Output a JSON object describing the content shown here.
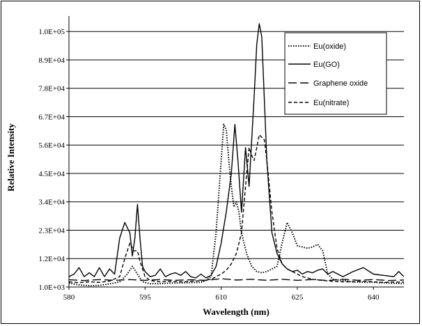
{
  "chart_data": {
    "type": "line",
    "title": "",
    "xlabel": "Wavelength (nm)",
    "ylabel": "Relative Intensity",
    "xlim": [
      580,
      646
    ],
    "ylim": [
      1000,
      106000
    ],
    "x_ticks": [
      580,
      595,
      610,
      625,
      640
    ],
    "x_tick_labels": [
      "580",
      "595",
      "610",
      "625",
      "640"
    ],
    "y_ticks": [
      1000,
      12000,
      23000,
      34000,
      45000,
      56000,
      67000,
      78000,
      89000,
      100000
    ],
    "y_tick_labels": [
      "1.0E+03",
      "1.2E+04",
      "2.3E+04",
      "3.4E+04",
      "4.5E+04",
      "5.6E+04",
      "6.7E+04",
      "7.8E+04",
      "8.9E+04",
      "1.0E+05"
    ],
    "grid": "horizontal",
    "legend_position": "top-right",
    "series": [
      {
        "name": "Eu(oxide)",
        "style": "dotted",
        "points": [
          [
            580,
            2500
          ],
          [
            582,
            1800
          ],
          [
            584,
            1500
          ],
          [
            586,
            1600
          ],
          [
            588,
            2200
          ],
          [
            590,
            3000
          ],
          [
            591.5,
            6000
          ],
          [
            592.5,
            9000
          ],
          [
            593.5,
            6000
          ],
          [
            594.5,
            3000
          ],
          [
            596,
            2300
          ],
          [
            598,
            2300
          ],
          [
            600,
            2500
          ],
          [
            602,
            2600
          ],
          [
            604,
            2700
          ],
          [
            606,
            2800
          ],
          [
            607,
            3500
          ],
          [
            608,
            5000
          ],
          [
            609,
            22000
          ],
          [
            610,
            50000
          ],
          [
            610.5,
            64000
          ],
          [
            611,
            62000
          ],
          [
            611.5,
            50000
          ],
          [
            612,
            40000
          ],
          [
            612.5,
            32000
          ],
          [
            613,
            34000
          ],
          [
            613.5,
            30000
          ],
          [
            614,
            22000
          ],
          [
            615,
            14000
          ],
          [
            616,
            9000
          ],
          [
            617,
            7000
          ],
          [
            618,
            6500
          ],
          [
            619,
            7000
          ],
          [
            620,
            8000
          ],
          [
            621,
            9000
          ],
          [
            622,
            18000
          ],
          [
            623,
            26000
          ],
          [
            624,
            22000
          ],
          [
            625,
            17000
          ],
          [
            626,
            16500
          ],
          [
            627,
            16000
          ],
          [
            628,
            16500
          ],
          [
            629,
            17500
          ],
          [
            630,
            15000
          ],
          [
            631,
            6000
          ],
          [
            632,
            4000
          ],
          [
            634,
            3500
          ],
          [
            636,
            3000
          ],
          [
            638,
            2800
          ],
          [
            640,
            2800
          ],
          [
            642,
            2600
          ],
          [
            644,
            2400
          ],
          [
            646,
            2300
          ]
        ]
      },
      {
        "name": "Eu(GO)",
        "style": "solid",
        "points": [
          [
            580,
            5000
          ],
          [
            581,
            6000
          ],
          [
            582,
            8500
          ],
          [
            583,
            5000
          ],
          [
            584,
            6500
          ],
          [
            585,
            5000
          ],
          [
            586,
            8500
          ],
          [
            587,
            5000
          ],
          [
            588,
            8000
          ],
          [
            589,
            6000
          ],
          [
            590,
            20000
          ],
          [
            591,
            26000
          ],
          [
            592,
            22000
          ],
          [
            592.5,
            13000
          ],
          [
            593,
            20000
          ],
          [
            593.5,
            33000
          ],
          [
            594,
            20000
          ],
          [
            594.5,
            9000
          ],
          [
            595,
            7000
          ],
          [
            596,
            5000
          ],
          [
            597,
            5500
          ],
          [
            598,
            8000
          ],
          [
            599,
            5000
          ],
          [
            600,
            6000
          ],
          [
            601,
            6500
          ],
          [
            602,
            5500
          ],
          [
            603,
            7000
          ],
          [
            604,
            5000
          ],
          [
            605,
            4500
          ],
          [
            606,
            6000
          ],
          [
            607,
            4500
          ],
          [
            608,
            5500
          ],
          [
            609,
            9000
          ],
          [
            610,
            18000
          ],
          [
            611,
            30000
          ],
          [
            612,
            45000
          ],
          [
            612.7,
            64000
          ],
          [
            613.3,
            50000
          ],
          [
            614,
            30000
          ],
          [
            614.8,
            55000
          ],
          [
            615.5,
            40000
          ],
          [
            616.5,
            75000
          ],
          [
            617,
            95000
          ],
          [
            617.5,
            103000
          ],
          [
            618,
            98000
          ],
          [
            619,
            50000
          ],
          [
            620,
            22000
          ],
          [
            621,
            14000
          ],
          [
            622,
            10000
          ],
          [
            623,
            8000
          ],
          [
            624,
            7000
          ],
          [
            625,
            7500
          ],
          [
            626,
            6000
          ],
          [
            627,
            7000
          ],
          [
            628,
            6500
          ],
          [
            629,
            7500
          ],
          [
            630,
            8000
          ],
          [
            631,
            6000
          ],
          [
            632,
            7000
          ],
          [
            634,
            5000
          ],
          [
            636,
            7000
          ],
          [
            638,
            8500
          ],
          [
            640,
            6000
          ],
          [
            642,
            5500
          ],
          [
            644,
            5000
          ],
          [
            645,
            7000
          ],
          [
            646,
            5000
          ]
        ]
      },
      {
        "name": "Graphene oxide",
        "style": "dashed-long",
        "points": [
          [
            580,
            3800
          ],
          [
            583,
            3500
          ],
          [
            586,
            3900
          ],
          [
            589,
            3600
          ],
          [
            592,
            3900
          ],
          [
            595,
            3600
          ],
          [
            598,
            3900
          ],
          [
            601,
            3600
          ],
          [
            604,
            3800
          ],
          [
            607,
            3600
          ],
          [
            610,
            4200
          ],
          [
            613,
            3700
          ],
          [
            616,
            4000
          ],
          [
            619,
            3600
          ],
          [
            622,
            4000
          ],
          [
            625,
            3600
          ],
          [
            628,
            3900
          ],
          [
            631,
            3500
          ],
          [
            634,
            4000
          ],
          [
            637,
            3600
          ],
          [
            640,
            3900
          ],
          [
            643,
            3500
          ],
          [
            646,
            3700
          ]
        ]
      },
      {
        "name": "Eu(nitrate)",
        "style": "dashed-short",
        "points": [
          [
            580,
            3000
          ],
          [
            582,
            2700
          ],
          [
            584,
            3000
          ],
          [
            586,
            2800
          ],
          [
            588,
            3300
          ],
          [
            590,
            5000
          ],
          [
            591,
            12000
          ],
          [
            592,
            18000
          ],
          [
            592.8,
            15000
          ],
          [
            593.5,
            15000
          ],
          [
            594,
            11000
          ],
          [
            595,
            5000
          ],
          [
            596,
            3500
          ],
          [
            598,
            3000
          ],
          [
            600,
            3200
          ],
          [
            602,
            3000
          ],
          [
            604,
            3200
          ],
          [
            606,
            3400
          ],
          [
            608,
            4000
          ],
          [
            610,
            6000
          ],
          [
            611,
            7500
          ],
          [
            612,
            10000
          ],
          [
            613,
            14000
          ],
          [
            614,
            22000
          ],
          [
            614.8,
            40000
          ],
          [
            615.5,
            55000
          ],
          [
            616,
            52000
          ],
          [
            616.5,
            50000
          ],
          [
            617.5,
            60000
          ],
          [
            618.5,
            58000
          ],
          [
            619,
            50000
          ],
          [
            620,
            30000
          ],
          [
            621,
            16000
          ],
          [
            622,
            10000
          ],
          [
            623,
            8000
          ],
          [
            624,
            7000
          ],
          [
            625,
            6000
          ],
          [
            626,
            5000
          ],
          [
            628,
            4000
          ],
          [
            630,
            3500
          ],
          [
            632,
            3200
          ],
          [
            634,
            3000
          ],
          [
            636,
            3000
          ],
          [
            638,
            3200
          ],
          [
            640,
            3000
          ],
          [
            642,
            2800
          ],
          [
            644,
            2900
          ],
          [
            646,
            2900
          ]
        ]
      }
    ]
  }
}
